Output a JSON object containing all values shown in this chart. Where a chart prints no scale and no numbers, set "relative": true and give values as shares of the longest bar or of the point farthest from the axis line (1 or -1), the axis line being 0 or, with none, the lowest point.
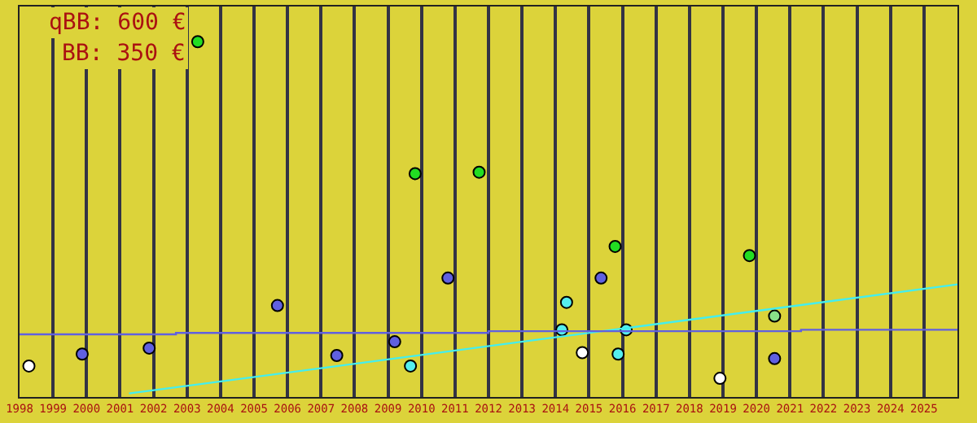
{
  "chart_data": {
    "type": "scatter",
    "relative": true,
    "marker": "circle",
    "grid": "x",
    "xlim": [
      1998,
      2026
    ],
    "xticks": [
      1998,
      1999,
      2000,
      2001,
      2002,
      2003,
      2004,
      2005,
      2006,
      2007,
      2008,
      2009,
      2010,
      2011,
      2012,
      2013,
      2014,
      2015,
      2016,
      2017,
      2018,
      2019,
      2020,
      2021,
      2022,
      2023,
      2024,
      2025
    ],
    "annotations": [
      "qBB: 600 €",
      "BB: 350 €"
    ],
    "series": [
      {
        "color": "#22dd22",
        "x": [
          2003.32,
          2009.81,
          2011.72,
          2015.78,
          2019.79
        ],
        "values": [
          1.0,
          0.625,
          0.629,
          0.418,
          0.392
        ]
      },
      {
        "color": "#88e088",
        "x": [
          2020.54
        ],
        "values": [
          0.22
        ]
      },
      {
        "color": "#6060e0",
        "x": [
          1999.87,
          2001.87,
          2005.7,
          2007.47,
          2009.2,
          2010.79,
          2015.36,
          2020.54
        ],
        "values": [
          0.112,
          0.129,
          0.25,
          0.108,
          0.147,
          0.328,
          0.328,
          0.099
        ]
      },
      {
        "color": "#55eeee",
        "x": [
          2009.67,
          2014.33,
          2014.19,
          2016.11,
          2015.87
        ],
        "values": [
          0.078,
          0.259,
          0.181,
          0.181,
          0.112
        ]
      },
      {
        "color": "#ffffff",
        "x": [
          1998.28,
          2014.8,
          2018.91
        ],
        "values": [
          0.078,
          0.116,
          0.043
        ]
      },
      {
        "type": "line",
        "marker": "none",
        "color": "#44eeee",
        "x": [
          2001.27,
          2026
        ],
        "values": [
          0,
          0.31
        ]
      },
      {
        "type": "step",
        "marker": "none",
        "color": "#6060e0",
        "x": [
          1998,
          2002.67,
          2012,
          2021.33,
          2026
        ],
        "values": [
          0.168,
          0.172,
          0.177,
          0.181,
          0.181
        ]
      }
    ]
  }
}
